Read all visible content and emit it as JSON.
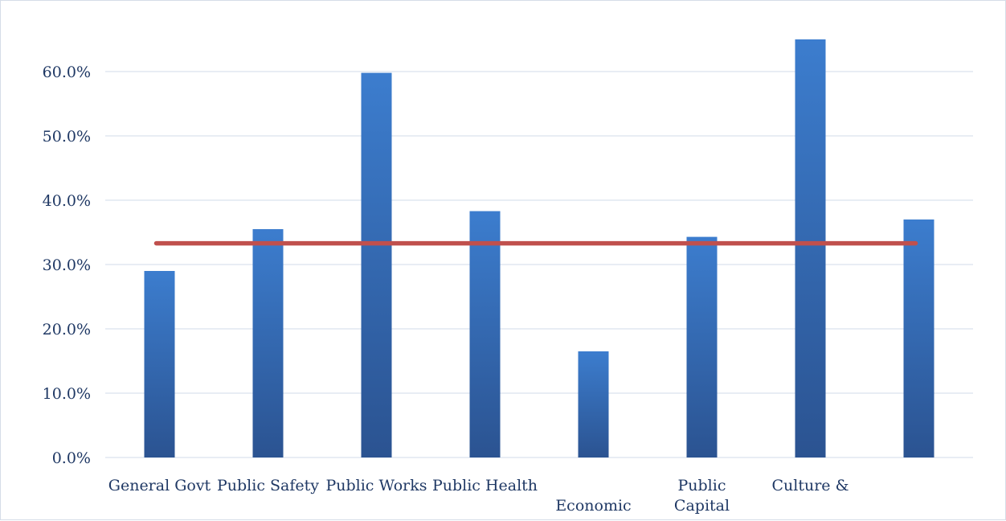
{
  "chart_data": {
    "type": "bar",
    "categories": [
      [
        "General Govt"
      ],
      [
        "Public Safety"
      ],
      [
        "Public Works"
      ],
      [
        "Public Health"
      ],
      [
        "",
        "Economic"
      ],
      [
        "Public",
        "Capital"
      ],
      [
        "Culture &"
      ],
      [
        ""
      ]
    ],
    "series": [
      {
        "type": "bar",
        "values": [
          29.0,
          35.5,
          59.8,
          38.3,
          16.5,
          34.3,
          65.0,
          37.0
        ]
      },
      {
        "type": "line",
        "values": [
          33.3,
          33.3,
          33.3,
          33.3,
          33.3,
          33.3,
          33.3,
          33.3
        ]
      }
    ],
    "yticks": [
      "0.0%",
      "10.0%",
      "20.0%",
      "30.0%",
      "40.0%",
      "50.0%",
      "60.0%"
    ],
    "ylim": [
      0,
      70
    ],
    "grid": true,
    "title": "",
    "xlabel": "",
    "ylabel": ""
  },
  "colors": {
    "bar_top": "#3c7dce",
    "bar_bottom": "#2b5391",
    "line": "#c0504d",
    "grid": "#d9e2ee",
    "text": "#1f3864"
  }
}
